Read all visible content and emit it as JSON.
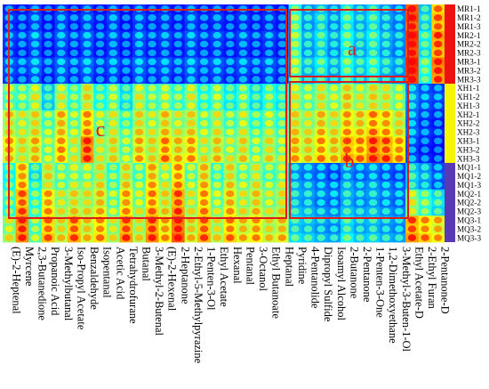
{
  "chart_data": {
    "type": "heatmap",
    "title": "",
    "xlabel": "",
    "ylabel": "",
    "compounds": [
      "(E)-2-Heptenal",
      "Myrcene",
      "2,3-Butanedione",
      "Propanoic Acid",
      "3-Methylbutanal",
      "Iso-Propyl Acetate",
      "Benzaldehyde",
      "Isopentanal",
      "Acetic Acid",
      "Tetrahydrofurane",
      "Butanal",
      "3-Methyl-2-Butenal",
      "(E)-2-Hexenal",
      "2-Heptanone",
      "2-Ethyl-5-Methylpyrazine",
      "1-Penten-3-Ol",
      "Ethyl Acetate",
      "Hexanal",
      "Pentanal",
      "3-Octanol",
      "Ethyl Butanoate",
      "Heptanal",
      "Pyridine",
      "4-Pentanolide",
      "Dipropyl Sulfide",
      "Isoamyl Alcohol",
      "2-Butanone",
      "2-Pentanone",
      "1-Penten-3-One",
      "1,2-Dimethoxyethane",
      "3-Methyl-3-Buten-1-Ol",
      "Ethyl Acetate-D",
      "2-Ethyl Furan",
      "2-Pentanone-D"
    ],
    "samples": [
      "MR1-1",
      "MR1-2",
      "MR1-3",
      "MR2-1",
      "MR2-2",
      "MR2-3",
      "MR3-1",
      "MR3-2",
      "MR3-3",
      "XH1-1",
      "XH1-2",
      "XH1-3",
      "XH2-1",
      "XH2-2",
      "XH2-3",
      "XH3-1",
      "XH3-2",
      "XH3-3",
      "MQ1-1",
      "MQ1-2",
      "MQ1-3",
      "MQ2-1",
      "MQ2-2",
      "MQ2-3",
      "MQ3-1",
      "MQ3-2",
      "MQ3-3"
    ],
    "groups": [
      {
        "name": "MR",
        "color": "#ee1111",
        "count": 9
      },
      {
        "name": "XH",
        "color": "#f5f50a",
        "count": 9
      },
      {
        "name": "MQ",
        "color": "#5a3ab4",
        "count": 9
      }
    ],
    "regions": [
      {
        "label": "a",
        "color": "#dd1d1d"
      },
      {
        "label": "b",
        "color": "#dd1d1d"
      },
      {
        "label": "c",
        "color": "#dd1d1d"
      }
    ],
    "colormap": [
      "#00008f",
      "#0000ff",
      "#0080ff",
      "#00ffff",
      "#80ff80",
      "#ffff00",
      "#ff8000",
      "#ff0000"
    ],
    "columns_per_compound": 1,
    "intensity": [
      [
        0.18,
        0.2,
        0.18,
        0.22,
        0.2,
        0.18,
        0.24,
        0.22,
        0.2,
        0.55,
        0.5,
        0.52,
        0.65,
        0.6,
        0.62,
        0.7,
        0.68,
        0.66,
        0.45,
        0.42,
        0.44,
        0.5,
        0.48,
        0.46,
        0.58,
        0.55,
        0.6
      ],
      [
        0.15,
        0.18,
        0.16,
        0.2,
        0.18,
        0.16,
        0.22,
        0.2,
        0.18,
        0.48,
        0.5,
        0.46,
        0.58,
        0.55,
        0.57,
        0.62,
        0.6,
        0.58,
        0.7,
        0.68,
        0.72,
        0.78,
        0.76,
        0.8,
        0.85,
        0.82,
        0.84
      ],
      [
        0.2,
        0.22,
        0.2,
        0.25,
        0.22,
        0.2,
        0.26,
        0.24,
        0.22,
        0.55,
        0.58,
        0.55,
        0.62,
        0.6,
        0.62,
        0.68,
        0.65,
        0.66,
        0.4,
        0.38,
        0.42,
        0.45,
        0.44,
        0.46,
        0.5,
        0.48,
        0.52
      ],
      [
        0.15,
        0.16,
        0.15,
        0.18,
        0.16,
        0.15,
        0.2,
        0.18,
        0.16,
        0.35,
        0.38,
        0.36,
        0.5,
        0.48,
        0.52,
        0.55,
        0.52,
        0.54,
        0.6,
        0.62,
        0.58,
        0.7,
        0.68,
        0.72,
        0.76,
        0.74,
        0.78
      ],
      [
        0.2,
        0.22,
        0.21,
        0.24,
        0.22,
        0.2,
        0.25,
        0.24,
        0.22,
        0.55,
        0.58,
        0.56,
        0.68,
        0.65,
        0.66,
        0.7,
        0.72,
        0.7,
        0.5,
        0.52,
        0.5,
        0.58,
        0.56,
        0.6,
        0.62,
        0.6,
        0.64
      ],
      [
        0.15,
        0.18,
        0.16,
        0.2,
        0.18,
        0.16,
        0.22,
        0.2,
        0.18,
        0.45,
        0.48,
        0.46,
        0.52,
        0.5,
        0.54,
        0.58,
        0.56,
        0.58,
        0.55,
        0.52,
        0.56,
        0.62,
        0.6,
        0.64,
        0.78,
        0.76,
        0.8
      ],
      [
        0.2,
        0.22,
        0.2,
        0.24,
        0.22,
        0.2,
        0.26,
        0.24,
        0.22,
        0.6,
        0.62,
        0.58,
        0.72,
        0.7,
        0.74,
        0.85,
        0.82,
        0.84,
        0.55,
        0.52,
        0.56,
        0.6,
        0.58,
        0.62,
        0.65,
        0.62,
        0.66
      ],
      [
        0.15,
        0.17,
        0.16,
        0.19,
        0.17,
        0.16,
        0.21,
        0.19,
        0.17,
        0.42,
        0.45,
        0.43,
        0.55,
        0.52,
        0.54,
        0.58,
        0.56,
        0.58,
        0.6,
        0.58,
        0.62,
        0.66,
        0.64,
        0.68,
        0.72,
        0.7,
        0.74
      ],
      [
        0.2,
        0.22,
        0.2,
        0.22,
        0.2,
        0.2,
        0.24,
        0.22,
        0.2,
        0.5,
        0.52,
        0.5,
        0.58,
        0.56,
        0.58,
        0.62,
        0.6,
        0.62,
        0.45,
        0.48,
        0.46,
        0.52,
        0.5,
        0.54,
        0.58,
        0.56,
        0.6
      ],
      [
        0.15,
        0.16,
        0.15,
        0.18,
        0.16,
        0.15,
        0.2,
        0.18,
        0.16,
        0.38,
        0.4,
        0.38,
        0.48,
        0.45,
        0.5,
        0.52,
        0.5,
        0.54,
        0.62,
        0.6,
        0.64,
        0.7,
        0.68,
        0.72,
        0.8,
        0.78,
        0.82
      ],
      [
        0.2,
        0.22,
        0.2,
        0.24,
        0.22,
        0.2,
        0.26,
        0.24,
        0.22,
        0.55,
        0.58,
        0.56,
        0.62,
        0.6,
        0.64,
        0.68,
        0.66,
        0.7,
        0.5,
        0.48,
        0.52,
        0.55,
        0.54,
        0.58,
        0.6,
        0.58,
        0.62
      ],
      [
        0.16,
        0.18,
        0.17,
        0.2,
        0.18,
        0.17,
        0.22,
        0.2,
        0.18,
        0.48,
        0.5,
        0.48,
        0.56,
        0.54,
        0.58,
        0.62,
        0.6,
        0.62,
        0.68,
        0.66,
        0.7,
        0.74,
        0.72,
        0.76,
        0.82,
        0.8,
        0.84
      ],
      [
        0.18,
        0.2,
        0.18,
        0.22,
        0.2,
        0.18,
        0.24,
        0.22,
        0.2,
        0.52,
        0.55,
        0.52,
        0.65,
        0.62,
        0.66,
        0.74,
        0.72,
        0.76,
        0.56,
        0.54,
        0.58,
        0.62,
        0.6,
        0.64,
        0.7,
        0.68,
        0.72
      ],
      [
        0.15,
        0.17,
        0.16,
        0.19,
        0.17,
        0.16,
        0.21,
        0.19,
        0.17,
        0.45,
        0.48,
        0.46,
        0.58,
        0.55,
        0.6,
        0.66,
        0.64,
        0.68,
        0.72,
        0.7,
        0.74,
        0.8,
        0.78,
        0.82,
        0.88,
        0.86,
        0.9
      ],
      [
        0.2,
        0.22,
        0.2,
        0.24,
        0.22,
        0.2,
        0.26,
        0.24,
        0.22,
        0.55,
        0.58,
        0.55,
        0.62,
        0.6,
        0.64,
        0.7,
        0.68,
        0.72,
        0.52,
        0.5,
        0.54,
        0.58,
        0.56,
        0.6,
        0.64,
        0.62,
        0.66
      ],
      [
        0.16,
        0.18,
        0.17,
        0.2,
        0.18,
        0.17,
        0.22,
        0.2,
        0.18,
        0.42,
        0.45,
        0.43,
        0.52,
        0.5,
        0.54,
        0.58,
        0.56,
        0.6,
        0.66,
        0.64,
        0.68,
        0.72,
        0.7,
        0.74,
        0.78,
        0.76,
        0.8
      ],
      [
        0.18,
        0.2,
        0.18,
        0.22,
        0.2,
        0.18,
        0.24,
        0.22,
        0.2,
        0.5,
        0.52,
        0.5,
        0.58,
        0.56,
        0.6,
        0.64,
        0.62,
        0.66,
        0.48,
        0.46,
        0.5,
        0.54,
        0.52,
        0.56,
        0.6,
        0.58,
        0.62
      ],
      [
        0.15,
        0.17,
        0.16,
        0.19,
        0.17,
        0.16,
        0.21,
        0.19,
        0.17,
        0.4,
        0.42,
        0.4,
        0.5,
        0.48,
        0.52,
        0.56,
        0.54,
        0.58,
        0.62,
        0.6,
        0.64,
        0.68,
        0.66,
        0.7,
        0.74,
        0.72,
        0.76
      ],
      [
        0.18,
        0.2,
        0.18,
        0.22,
        0.2,
        0.18,
        0.24,
        0.22,
        0.2,
        0.48,
        0.5,
        0.48,
        0.56,
        0.54,
        0.58,
        0.62,
        0.6,
        0.64,
        0.52,
        0.5,
        0.54,
        0.58,
        0.56,
        0.6,
        0.66,
        0.64,
        0.68
      ],
      [
        0.15,
        0.17,
        0.16,
        0.19,
        0.17,
        0.16,
        0.21,
        0.19,
        0.17,
        0.38,
        0.4,
        0.38,
        0.46,
        0.44,
        0.48,
        0.52,
        0.5,
        0.54,
        0.58,
        0.56,
        0.6,
        0.64,
        0.62,
        0.66,
        0.7,
        0.68,
        0.72
      ],
      [
        0.18,
        0.2,
        0.18,
        0.22,
        0.2,
        0.18,
        0.24,
        0.22,
        0.2,
        0.45,
        0.48,
        0.46,
        0.54,
        0.52,
        0.56,
        0.6,
        0.58,
        0.62,
        0.5,
        0.48,
        0.52,
        0.56,
        0.54,
        0.58,
        0.62,
        0.6,
        0.64
      ],
      [
        0.15,
        0.17,
        0.16,
        0.19,
        0.17,
        0.16,
        0.21,
        0.19,
        0.17,
        0.4,
        0.42,
        0.4,
        0.48,
        0.46,
        0.5,
        0.54,
        0.52,
        0.56,
        0.55,
        0.53,
        0.57,
        0.6,
        0.58,
        0.62,
        0.66,
        0.64,
        0.68
      ],
      [
        0.45,
        0.48,
        0.46,
        0.5,
        0.48,
        0.46,
        0.52,
        0.5,
        0.48,
        0.55,
        0.58,
        0.56,
        0.62,
        0.6,
        0.64,
        0.68,
        0.66,
        0.7,
        0.3,
        0.28,
        0.32,
        0.34,
        0.32,
        0.36,
        0.38,
        0.36,
        0.4
      ],
      [
        0.3,
        0.32,
        0.3,
        0.34,
        0.32,
        0.3,
        0.36,
        0.34,
        0.32,
        0.5,
        0.52,
        0.5,
        0.58,
        0.56,
        0.6,
        0.64,
        0.62,
        0.66,
        0.28,
        0.26,
        0.3,
        0.32,
        0.3,
        0.34,
        0.36,
        0.34,
        0.38
      ],
      [
        0.35,
        0.38,
        0.36,
        0.4,
        0.38,
        0.36,
        0.42,
        0.4,
        0.38,
        0.58,
        0.6,
        0.58,
        0.66,
        0.64,
        0.68,
        0.72,
        0.7,
        0.74,
        0.25,
        0.24,
        0.26,
        0.28,
        0.26,
        0.3,
        0.32,
        0.3,
        0.34
      ],
      [
        0.28,
        0.3,
        0.28,
        0.32,
        0.3,
        0.28,
        0.34,
        0.32,
        0.3,
        0.52,
        0.55,
        0.53,
        0.6,
        0.58,
        0.62,
        0.66,
        0.64,
        0.68,
        0.22,
        0.2,
        0.24,
        0.26,
        0.24,
        0.28,
        0.3,
        0.28,
        0.32
      ],
      [
        0.4,
        0.42,
        0.4,
        0.44,
        0.42,
        0.4,
        0.46,
        0.44,
        0.42,
        0.62,
        0.65,
        0.63,
        0.7,
        0.68,
        0.72,
        0.78,
        0.76,
        0.8,
        0.3,
        0.28,
        0.32,
        0.34,
        0.32,
        0.36,
        0.4,
        0.38,
        0.42
      ],
      [
        0.32,
        0.34,
        0.32,
        0.36,
        0.34,
        0.32,
        0.38,
        0.36,
        0.34,
        0.55,
        0.58,
        0.56,
        0.66,
        0.64,
        0.68,
        0.74,
        0.72,
        0.76,
        0.26,
        0.24,
        0.28,
        0.3,
        0.28,
        0.32,
        0.34,
        0.32,
        0.36
      ],
      [
        0.38,
        0.4,
        0.38,
        0.42,
        0.4,
        0.38,
        0.44,
        0.42,
        0.4,
        0.6,
        0.62,
        0.6,
        0.74,
        0.72,
        0.76,
        0.84,
        0.82,
        0.86,
        0.28,
        0.26,
        0.3,
        0.32,
        0.3,
        0.34,
        0.36,
        0.34,
        0.38
      ],
      [
        0.3,
        0.32,
        0.3,
        0.34,
        0.32,
        0.3,
        0.36,
        0.34,
        0.32,
        0.58,
        0.6,
        0.58,
        0.7,
        0.68,
        0.72,
        0.8,
        0.78,
        0.82,
        0.24,
        0.22,
        0.26,
        0.28,
        0.26,
        0.3,
        0.32,
        0.3,
        0.34
      ],
      [
        0.26,
        0.28,
        0.26,
        0.3,
        0.28,
        0.26,
        0.32,
        0.3,
        0.28,
        0.52,
        0.55,
        0.53,
        0.62,
        0.6,
        0.64,
        0.72,
        0.7,
        0.74,
        0.22,
        0.2,
        0.24,
        0.26,
        0.24,
        0.28,
        0.3,
        0.28,
        0.32
      ],
      [
        0.9,
        0.92,
        0.88,
        0.95,
        0.93,
        0.9,
        0.96,
        0.94,
        0.92,
        0.28,
        0.3,
        0.28,
        0.26,
        0.24,
        0.26,
        0.22,
        0.2,
        0.22,
        0.35,
        0.38,
        0.36,
        0.55,
        0.58,
        0.56,
        0.8,
        0.78,
        0.82
      ],
      [
        0.35,
        0.38,
        0.36,
        0.42,
        0.4,
        0.38,
        0.46,
        0.44,
        0.42,
        0.22,
        0.24,
        0.22,
        0.2,
        0.18,
        0.2,
        0.18,
        0.16,
        0.18,
        0.3,
        0.32,
        0.3,
        0.45,
        0.48,
        0.46,
        0.72,
        0.7,
        0.76
      ],
      [
        0.75,
        0.78,
        0.76,
        0.82,
        0.8,
        0.78,
        0.86,
        0.84,
        0.82,
        0.2,
        0.22,
        0.2,
        0.18,
        0.16,
        0.18,
        0.16,
        0.15,
        0.16,
        0.22,
        0.24,
        0.22,
        0.38,
        0.4,
        0.38,
        0.68,
        0.66,
        0.7
      ]
    ]
  }
}
